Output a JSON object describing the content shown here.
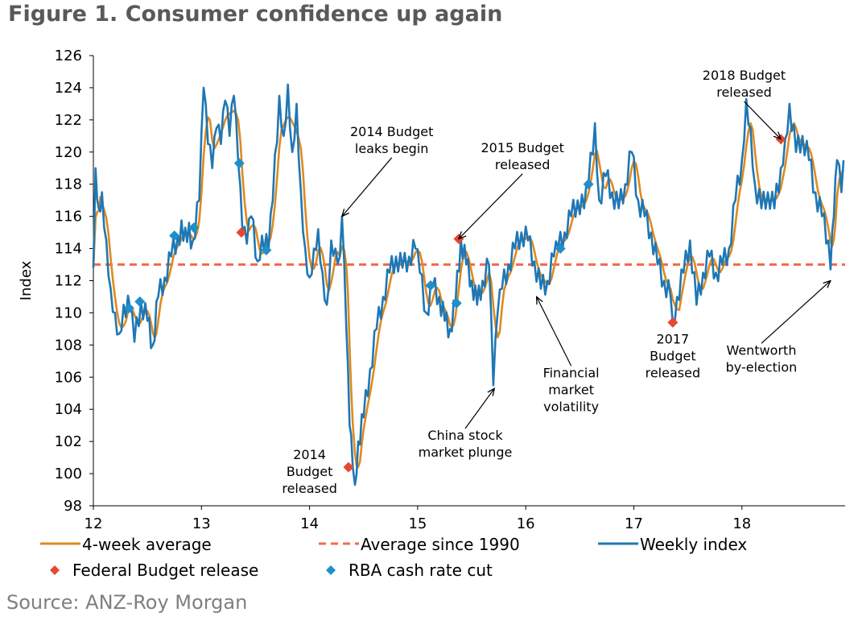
{
  "title": "Figure 1. Consumer confidence up again",
  "source": "Source: ANZ-Roy Morgan",
  "colors": {
    "weekly": "#1f77b4",
    "avg4": "#e08a1e",
    "avg1990": "#f26b4f",
    "budget": "#e8482f",
    "rba": "#1f8fc9"
  },
  "chart_data": {
    "type": "line",
    "ylabel": "Index",
    "ylim": [
      98,
      126
    ],
    "yticks": [
      98,
      100,
      102,
      104,
      106,
      108,
      110,
      112,
      114,
      116,
      118,
      120,
      122,
      124,
      126
    ],
    "xlim": [
      12,
      18.95
    ],
    "xticks": [
      12,
      13,
      14,
      15,
      16,
      17,
      18
    ],
    "average_since_1990": 113.0,
    "weekly_keypoints": [
      [
        12.0,
        112.8
      ],
      [
        12.02,
        119.0
      ],
      [
        12.05,
        116.5
      ],
      [
        12.08,
        117.5
      ],
      [
        12.12,
        114.5
      ],
      [
        12.16,
        111.5
      ],
      [
        12.2,
        110.0
      ],
      [
        12.24,
        108.7
      ],
      [
        12.28,
        110.5
      ],
      [
        12.34,
        110.3
      ],
      [
        12.38,
        108.2
      ],
      [
        12.44,
        110.7
      ],
      [
        12.5,
        109.5
      ],
      [
        12.55,
        108.0
      ],
      [
        12.6,
        111.0
      ],
      [
        12.66,
        112.2
      ],
      [
        12.72,
        113.5
      ],
      [
        12.78,
        114.8
      ],
      [
        12.85,
        115.3
      ],
      [
        12.92,
        114.5
      ],
      [
        12.98,
        117.0
      ],
      [
        13.02,
        124.0
      ],
      [
        13.06,
        120.5
      ],
      [
        13.1,
        119.0
      ],
      [
        13.14,
        121.5
      ],
      [
        13.18,
        120.5
      ],
      [
        13.22,
        123.2
      ],
      [
        13.26,
        121.0
      ],
      [
        13.3,
        123.5
      ],
      [
        13.34,
        119.3
      ],
      [
        13.38,
        115.0
      ],
      [
        13.42,
        114.3
      ],
      [
        13.46,
        116.0
      ],
      [
        13.52,
        113.2
      ],
      [
        13.56,
        114.8
      ],
      [
        13.62,
        113.9
      ],
      [
        13.66,
        117.0
      ],
      [
        13.72,
        123.5
      ],
      [
        13.76,
        121.0
      ],
      [
        13.8,
        124.2
      ],
      [
        13.84,
        120.0
      ],
      [
        13.88,
        123.0
      ],
      [
        13.92,
        117.5
      ],
      [
        13.96,
        114.0
      ],
      [
        14.0,
        112.2
      ],
      [
        14.04,
        114.0
      ],
      [
        14.08,
        115.2
      ],
      [
        14.12,
        112.5
      ],
      [
        14.16,
        110.5
      ],
      [
        14.2,
        114.5
      ],
      [
        14.24,
        114.0
      ],
      [
        14.28,
        113.5
      ],
      [
        14.3,
        116.0
      ],
      [
        14.34,
        109.0
      ],
      [
        14.37,
        103.0
      ],
      [
        14.4,
        100.4
      ],
      [
        14.42,
        99.3
      ],
      [
        14.45,
        102.0
      ],
      [
        14.5,
        103.5
      ],
      [
        14.56,
        106.5
      ],
      [
        14.62,
        109.0
      ],
      [
        14.68,
        111.0
      ],
      [
        14.74,
        112.5
      ],
      [
        14.8,
        113.5
      ],
      [
        14.86,
        112.8
      ],
      [
        14.92,
        113.5
      ],
      [
        14.98,
        114.0
      ],
      [
        15.02,
        112.5
      ],
      [
        15.08,
        110.0
      ],
      [
        15.14,
        111.7
      ],
      [
        15.2,
        111.0
      ],
      [
        15.25,
        109.5
      ],
      [
        15.3,
        109.0
      ],
      [
        15.35,
        110.6
      ],
      [
        15.4,
        114.6
      ],
      [
        15.45,
        113.0
      ],
      [
        15.5,
        112.0
      ],
      [
        15.55,
        110.5
      ],
      [
        15.6,
        112.0
      ],
      [
        15.66,
        113.0
      ],
      [
        15.7,
        105.5
      ],
      [
        15.74,
        110.0
      ],
      [
        15.78,
        111.5
      ],
      [
        15.84,
        113.0
      ],
      [
        15.9,
        114.0
      ],
      [
        15.96,
        115.0
      ],
      [
        16.02,
        114.5
      ],
      [
        16.08,
        113.2
      ],
      [
        16.14,
        111.5
      ],
      [
        16.2,
        112.0
      ],
      [
        16.26,
        113.5
      ],
      [
        16.3,
        114.0
      ],
      [
        16.36,
        115.0
      ],
      [
        16.42,
        116.0
      ],
      [
        16.48,
        117.0
      ],
      [
        16.54,
        116.5
      ],
      [
        16.58,
        118.0
      ],
      [
        16.64,
        121.8
      ],
      [
        16.68,
        117.0
      ],
      [
        16.74,
        118.5
      ],
      [
        16.8,
        117.5
      ],
      [
        16.86,
        116.5
      ],
      [
        16.92,
        118.0
      ],
      [
        16.98,
        120.0
      ],
      [
        17.04,
        117.0
      ],
      [
        17.1,
        116.0
      ],
      [
        17.16,
        115.0
      ],
      [
        17.22,
        113.0
      ],
      [
        17.28,
        112.0
      ],
      [
        17.34,
        111.0
      ],
      [
        17.36,
        109.4
      ],
      [
        17.4,
        111.0
      ],
      [
        17.46,
        112.5
      ],
      [
        17.52,
        114.5
      ],
      [
        17.58,
        110.5
      ],
      [
        17.64,
        112.5
      ],
      [
        17.7,
        113.5
      ],
      [
        17.76,
        112.5
      ],
      [
        17.82,
        113.0
      ],
      [
        17.88,
        114.0
      ],
      [
        17.94,
        117.0
      ],
      [
        18.0,
        119.5
      ],
      [
        18.04,
        123.3
      ],
      [
        18.08,
        121.5
      ],
      [
        18.12,
        118.0
      ],
      [
        18.18,
        116.5
      ],
      [
        18.24,
        117.5
      ],
      [
        18.3,
        116.5
      ],
      [
        18.36,
        119.0
      ],
      [
        18.4,
        120.8
      ],
      [
        18.44,
        123.0
      ],
      [
        18.5,
        120.0
      ],
      [
        18.56,
        121.0
      ],
      [
        18.62,
        119.5
      ],
      [
        18.68,
        117.5
      ],
      [
        18.74,
        116.0
      ],
      [
        18.8,
        114.5
      ],
      [
        18.82,
        112.7
      ],
      [
        18.85,
        116.0
      ],
      [
        18.88,
        119.5
      ],
      [
        18.92,
        117.5
      ],
      [
        18.94,
        119.5
      ]
    ],
    "series": [
      {
        "name": "4-week average",
        "style": "line",
        "color_key": "avg4"
      },
      {
        "name": "Average since 1990",
        "style": "dashed",
        "color_key": "avg1990"
      },
      {
        "name": "Weekly index",
        "style": "line",
        "color_key": "weekly"
      }
    ],
    "federal_budget_releases": [
      [
        13.37,
        115.0
      ],
      [
        14.36,
        100.4
      ],
      [
        15.38,
        114.6
      ],
      [
        17.36,
        109.4
      ],
      [
        18.36,
        120.8
      ]
    ],
    "rba_cash_rate_cuts": [
      [
        12.33,
        110.3
      ],
      [
        12.43,
        110.7
      ],
      [
        12.75,
        114.8
      ],
      [
        12.93,
        115.3
      ],
      [
        13.35,
        119.3
      ],
      [
        13.6,
        113.9
      ],
      [
        15.12,
        111.7
      ],
      [
        15.36,
        110.6
      ],
      [
        16.32,
        114.0
      ],
      [
        16.58,
        118.0
      ]
    ],
    "legend": [
      {
        "label": "4-week average",
        "kind": "line",
        "color_key": "avg4"
      },
      {
        "label": "Average since 1990",
        "kind": "dashed",
        "color_key": "avg1990"
      },
      {
        "label": "Weekly index",
        "kind": "line",
        "color_key": "weekly"
      },
      {
        "label": "Federal Budget release",
        "kind": "diamond",
        "color_key": "budget"
      },
      {
        "label": "RBA cash rate cut",
        "kind": "diamond",
        "color_key": "rba"
      }
    ],
    "annotations": [
      {
        "lines": [
          "2014 Budget",
          "leaks begin"
        ],
        "target": [
          14.3,
          116.0
        ],
        "text_pos": [
          14.76,
          121.0
        ],
        "arrow": true
      },
      {
        "lines": [
          "2015 Budget",
          "released"
        ],
        "target": [
          15.38,
          114.6
        ],
        "text_pos": [
          15.97,
          120.0
        ],
        "arrow": true
      },
      {
        "lines": [
          "2018 Budget",
          "released"
        ],
        "target": [
          18.36,
          120.8
        ],
        "text_pos": [
          18.02,
          124.5
        ],
        "arrow": true
      },
      {
        "lines": [
          "2014",
          "Budget",
          "released"
        ],
        "target": null,
        "text_pos": [
          14.0,
          100.9
        ],
        "arrow": false
      },
      {
        "lines": [
          "China stock",
          "market plunge"
        ],
        "target": [
          15.71,
          105.3
        ],
        "text_pos": [
          15.44,
          102.1
        ],
        "arrow": true
      },
      {
        "lines": [
          "Financial",
          "market",
          "volatility"
        ],
        "target": [
          16.1,
          111.0
        ],
        "text_pos": [
          16.42,
          106.0
        ],
        "arrow": true
      },
      {
        "lines": [
          "2017",
          "Budget",
          "released"
        ],
        "target": null,
        "text_pos": [
          17.36,
          108.1
        ],
        "arrow": false
      },
      {
        "lines": [
          "Wentworth",
          "by-election"
        ],
        "target": [
          18.82,
          112.0
        ],
        "text_pos": [
          18.18,
          107.4
        ],
        "arrow": true
      }
    ]
  }
}
